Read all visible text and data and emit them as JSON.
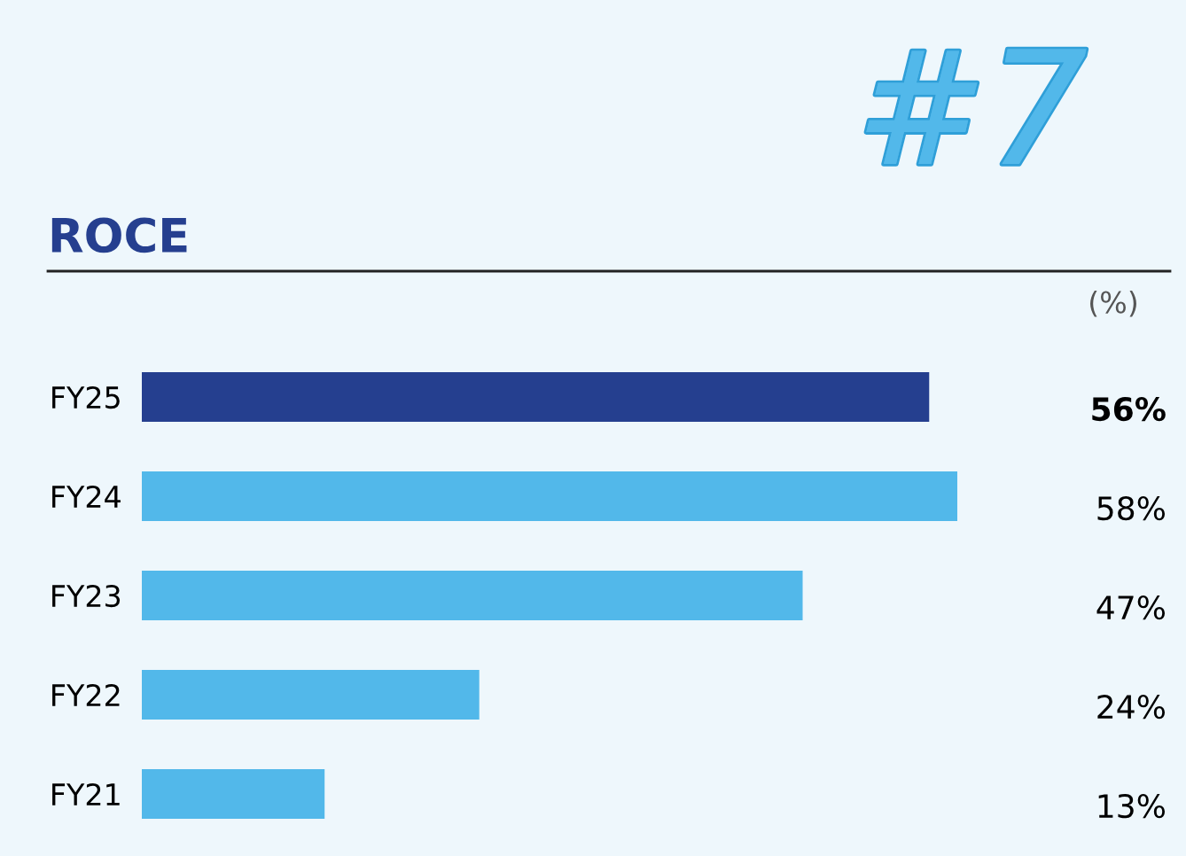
{
  "chart_data": {
    "type": "bar",
    "orientation": "horizontal",
    "title": "ROCE",
    "categories": [
      "FY25",
      "FY24",
      "FY23",
      "FY22",
      "FY21"
    ],
    "values": [
      56,
      58,
      47,
      24,
      13
    ],
    "value_labels": [
      "56%",
      "58%",
      "47%",
      "24%",
      "13%"
    ],
    "colors": [
      "#253f8f",
      "#52b8ea",
      "#52b8ea",
      "#52b8ea",
      "#52b8ea"
    ],
    "annotations": [
      "#7",
      "(%)"
    ],
    "legend": false,
    "grid": false
  }
}
